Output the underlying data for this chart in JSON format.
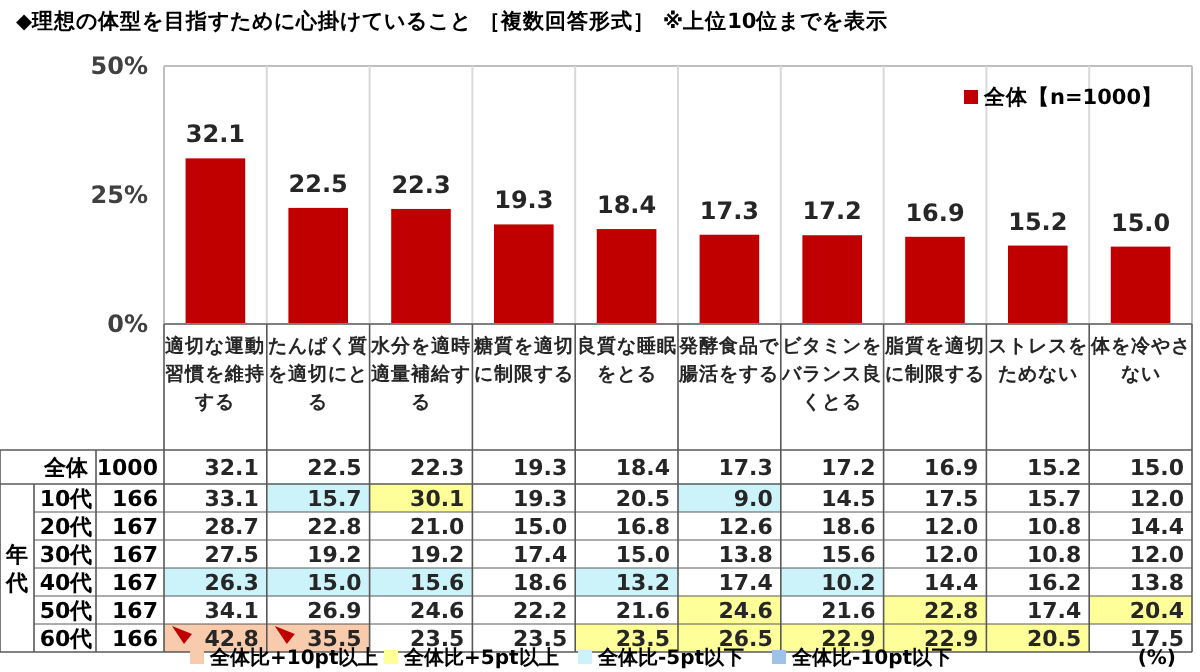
{
  "chart_data": [
    {
      "type": "bar",
      "title": "◆理想の体型を目指すために心掛けていること ［複数回答形式］ ※上位10位までを表示",
      "categories": [
        "適切な運動習慣を維持する",
        "たんぱく質を適切にとる",
        "水分を適時適量補給する",
        "糖質を適切に制限する",
        "良質な睡眠をとる",
        "発酵食品で腸活をする",
        "ビタミンをバランス良くとる",
        "脂質を適切に制限する",
        "ストレスをためない",
        "体を冷やさない"
      ],
      "series": [
        {
          "name": "全体【n=1000】",
          "color": "#c00000",
          "values": [
            32.1,
            22.5,
            22.3,
            19.3,
            18.4,
            17.3,
            17.2,
            16.9,
            15.2,
            15.0
          ],
          "value_labels": [
            "32.1",
            "22.5",
            "22.3",
            "19.3",
            "18.4",
            "17.3",
            "17.2",
            "16.9",
            "15.2",
            "15.0"
          ]
        }
      ],
      "ylim": [
        0,
        50
      ],
      "yticks": [
        {
          "value": 0,
          "label": "0%"
        },
        {
          "value": 25,
          "label": "25%"
        },
        {
          "value": 50,
          "label": "50%"
        }
      ],
      "legend": "top right",
      "grid": "x"
    },
    {
      "type": "heatmap",
      "categories": [
        null,
        null,
        null,
        null,
        null,
        null,
        null,
        null,
        null,
        null
      ],
      "y_categories": [
        "全体",
        "10代",
        "20代",
        "30代",
        "40代",
        "50代",
        "60代"
      ],
      "y2_categories": [
        "1000",
        "166",
        "167",
        "167",
        "167",
        "167",
        "166"
      ],
      "ylabel": "年代",
      "cells": [
        [
          32.1,
          22.5,
          22.3,
          19.3,
          18.4,
          17.3,
          17.2,
          16.9,
          15.2,
          15.0
        ],
        [
          33.1,
          15.7,
          30.1,
          19.3,
          20.5,
          9.0,
          14.5,
          17.5,
          15.7,
          12.0
        ],
        [
          28.7,
          22.8,
          21.0,
          15.0,
          16.8,
          12.6,
          18.6,
          12.0,
          10.8,
          14.4
        ],
        [
          27.5,
          19.2,
          19.2,
          17.4,
          15.0,
          13.8,
          15.6,
          12.0,
          10.8,
          12.0
        ],
        [
          26.3,
          15.0,
          15.6,
          18.6,
          13.2,
          17.4,
          10.2,
          14.4,
          16.2,
          13.8
        ],
        [
          34.1,
          26.9,
          24.6,
          22.2,
          21.6,
          24.6,
          21.6,
          22.8,
          17.4,
          20.4
        ],
        [
          42.8,
          35.5,
          23.5,
          23.5,
          23.5,
          26.5,
          22.9,
          22.9,
          20.5,
          17.5
        ]
      ],
      "cell_labels": [
        [
          "32.1",
          "22.5",
          "22.3",
          "19.3",
          "18.4",
          "17.3",
          "17.2",
          "16.9",
          "15.2",
          "15.0"
        ],
        [
          "33.1",
          "15.7",
          "30.1",
          "19.3",
          "20.5",
          "9.0",
          "14.5",
          "17.5",
          "15.7",
          "12.0"
        ],
        [
          "28.7",
          "22.8",
          "21.0",
          "15.0",
          "16.8",
          "12.6",
          "18.6",
          "12.0",
          "10.8",
          "14.4"
        ],
        [
          "27.5",
          "19.2",
          "19.2",
          "17.4",
          "15.0",
          "13.8",
          "15.6",
          "12.0",
          "10.8",
          "12.0"
        ],
        [
          "26.3",
          "15.0",
          "15.6",
          "18.6",
          "13.2",
          "17.4",
          "10.2",
          "14.4",
          "16.2",
          "13.8"
        ],
        [
          "34.1",
          "26.9",
          "24.6",
          "22.2",
          "21.6",
          "24.6",
          "21.6",
          "22.8",
          "17.4",
          "20.4"
        ],
        [
          "42.8",
          "35.5",
          "23.5",
          "23.5",
          "23.5",
          "26.5",
          "22.9",
          "22.9",
          "20.5",
          "17.5"
        ]
      ],
      "annotations": [
        "全体比+10pt以上",
        "全体比+5pt以上",
        "全体比-5pt以下",
        "全体比-10pt以下",
        "(%)"
      ]
    }
  ]
}
